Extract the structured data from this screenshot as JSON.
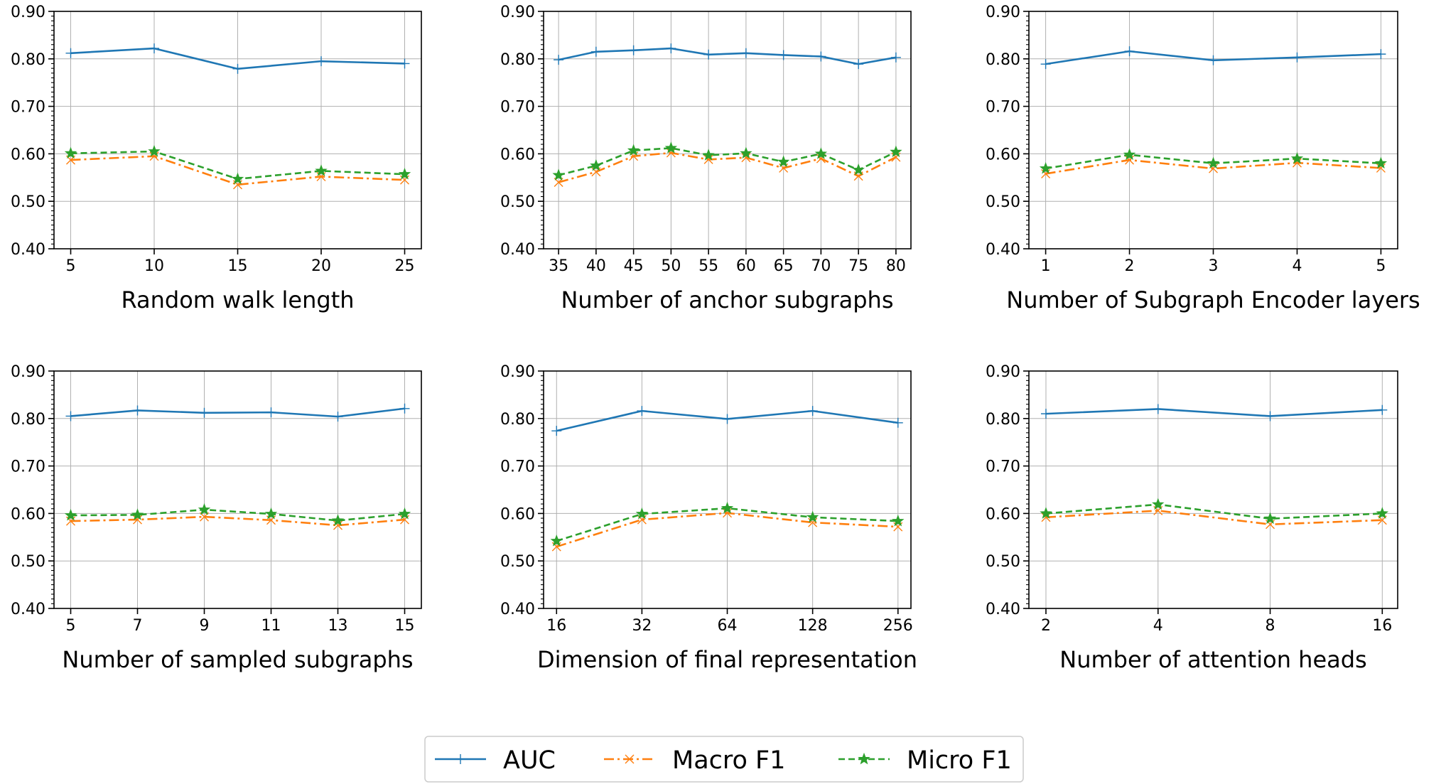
{
  "colors": {
    "auc": "#1f77b4",
    "macro": "#ff7f0e",
    "micro": "#2ca02c"
  },
  "legend": [
    {
      "name": "AUC",
      "color": "#1f77b4",
      "dash": "solid",
      "marker": "plus"
    },
    {
      "name": "Macro F1",
      "color": "#ff7f0e",
      "dash": "dashdot",
      "marker": "x"
    },
    {
      "name": "Micro F1",
      "color": "#2ca02c",
      "dash": "dashed",
      "marker": "star"
    }
  ],
  "chart_data": [
    {
      "type": "line",
      "xlabel": "Random walk length",
      "ylabel": "",
      "x_scale": "linear",
      "x_ticks": [
        "5",
        "10",
        "15",
        "20",
        "25"
      ],
      "x": [
        5,
        10,
        15,
        20,
        25
      ],
      "xlim": [
        4,
        26
      ],
      "ylim": [
        0.4,
        0.9
      ],
      "y_ticks": [
        "0.40",
        "0.50",
        "0.60",
        "0.70",
        "0.80",
        "0.90"
      ],
      "grid": true,
      "series": [
        {
          "name": "AUC",
          "values": [
            0.812,
            0.822,
            0.779,
            0.795,
            0.79
          ]
        },
        {
          "name": "Macro F1",
          "values": [
            0.587,
            0.595,
            0.535,
            0.552,
            0.545
          ]
        },
        {
          "name": "Micro F1",
          "values": [
            0.601,
            0.605,
            0.547,
            0.564,
            0.557
          ]
        }
      ]
    },
    {
      "type": "line",
      "xlabel": "Number of anchor subgraphs",
      "ylabel": "",
      "x_scale": "linear",
      "x_ticks": [
        "35",
        "40",
        "45",
        "50",
        "55",
        "60",
        "65",
        "70",
        "75",
        "80"
      ],
      "x": [
        35,
        40,
        45,
        50,
        55,
        60,
        65,
        70,
        75,
        80
      ],
      "xlim": [
        33,
        82
      ],
      "ylim": [
        0.4,
        0.9
      ],
      "y_ticks": [
        "0.40",
        "0.50",
        "0.60",
        "0.70",
        "0.80",
        "0.90"
      ],
      "grid": true,
      "series": [
        {
          "name": "AUC",
          "values": [
            0.798,
            0.815,
            0.818,
            0.822,
            0.809,
            0.812,
            0.808,
            0.805,
            0.789,
            0.803
          ]
        },
        {
          "name": "Macro F1",
          "values": [
            0.54,
            0.562,
            0.595,
            0.602,
            0.588,
            0.592,
            0.57,
            0.59,
            0.553,
            0.593
          ]
        },
        {
          "name": "Micro F1",
          "values": [
            0.555,
            0.575,
            0.607,
            0.612,
            0.597,
            0.601,
            0.583,
            0.6,
            0.566,
            0.604
          ]
        }
      ]
    },
    {
      "type": "line",
      "xlabel": "Number of Subgraph Encoder layers",
      "ylabel": "",
      "x_scale": "linear",
      "x_ticks": [
        "1",
        "2",
        "3",
        "4",
        "5"
      ],
      "x": [
        1,
        2,
        3,
        4,
        5
      ],
      "xlim": [
        0.8,
        5.2
      ],
      "ylim": [
        0.4,
        0.9
      ],
      "y_ticks": [
        "0.40",
        "0.50",
        "0.60",
        "0.70",
        "0.80",
        "0.90"
      ],
      "grid": true,
      "series": [
        {
          "name": "AUC",
          "values": [
            0.789,
            0.816,
            0.797,
            0.803,
            0.81
          ]
        },
        {
          "name": "Macro F1",
          "values": [
            0.558,
            0.587,
            0.569,
            0.581,
            0.57
          ]
        },
        {
          "name": "Micro F1",
          "values": [
            0.569,
            0.598,
            0.58,
            0.59,
            0.58
          ]
        }
      ]
    },
    {
      "type": "line",
      "xlabel": "Number of sampled subgraphs",
      "ylabel": "",
      "x_scale": "linear",
      "x_ticks": [
        "5",
        "7",
        "9",
        "11",
        "13",
        "15"
      ],
      "x": [
        5,
        7,
        9,
        11,
        13,
        15
      ],
      "xlim": [
        4.5,
        15.5
      ],
      "ylim": [
        0.4,
        0.9
      ],
      "y_ticks": [
        "0.40",
        "0.50",
        "0.60",
        "0.70",
        "0.80",
        "0.90"
      ],
      "grid": true,
      "series": [
        {
          "name": "AUC",
          "values": [
            0.805,
            0.817,
            0.812,
            0.813,
            0.804,
            0.821
          ]
        },
        {
          "name": "Macro F1",
          "values": [
            0.584,
            0.587,
            0.593,
            0.586,
            0.575,
            0.587
          ]
        },
        {
          "name": "Micro F1",
          "values": [
            0.596,
            0.597,
            0.608,
            0.599,
            0.585,
            0.599
          ]
        }
      ]
    },
    {
      "type": "line",
      "xlabel": "Dimension of final representation",
      "ylabel": "",
      "x_scale": "log2",
      "x_ticks": [
        "16",
        "32",
        "64",
        "128",
        "256"
      ],
      "x": [
        16,
        32,
        64,
        128,
        256
      ],
      "xlim": [
        14.4,
        284.4
      ],
      "ylim": [
        0.4,
        0.9
      ],
      "y_ticks": [
        "0.40",
        "0.50",
        "0.60",
        "0.70",
        "0.80",
        "0.90"
      ],
      "grid": true,
      "series": [
        {
          "name": "AUC",
          "values": [
            0.774,
            0.816,
            0.799,
            0.816,
            0.791
          ]
        },
        {
          "name": "Macro F1",
          "values": [
            0.53,
            0.587,
            0.601,
            0.581,
            0.572
          ]
        },
        {
          "name": "Micro F1",
          "values": [
            0.542,
            0.599,
            0.611,
            0.592,
            0.584
          ]
        }
      ]
    },
    {
      "type": "line",
      "xlabel": "Number of attention heads",
      "ylabel": "",
      "x_scale": "log2",
      "x_ticks": [
        "2",
        "4",
        "8",
        "16"
      ],
      "x": [
        2,
        4,
        8,
        16
      ],
      "xlim": [
        1.8,
        17.6
      ],
      "ylim": [
        0.4,
        0.9
      ],
      "y_ticks": [
        "0.40",
        "0.50",
        "0.60",
        "0.70",
        "0.80",
        "0.90"
      ],
      "grid": true,
      "series": [
        {
          "name": "AUC",
          "values": [
            0.81,
            0.82,
            0.805,
            0.818
          ]
        },
        {
          "name": "Macro F1",
          "values": [
            0.592,
            0.606,
            0.577,
            0.586
          ]
        },
        {
          "name": "Micro F1",
          "values": [
            0.6,
            0.619,
            0.589,
            0.6
          ]
        }
      ]
    }
  ]
}
